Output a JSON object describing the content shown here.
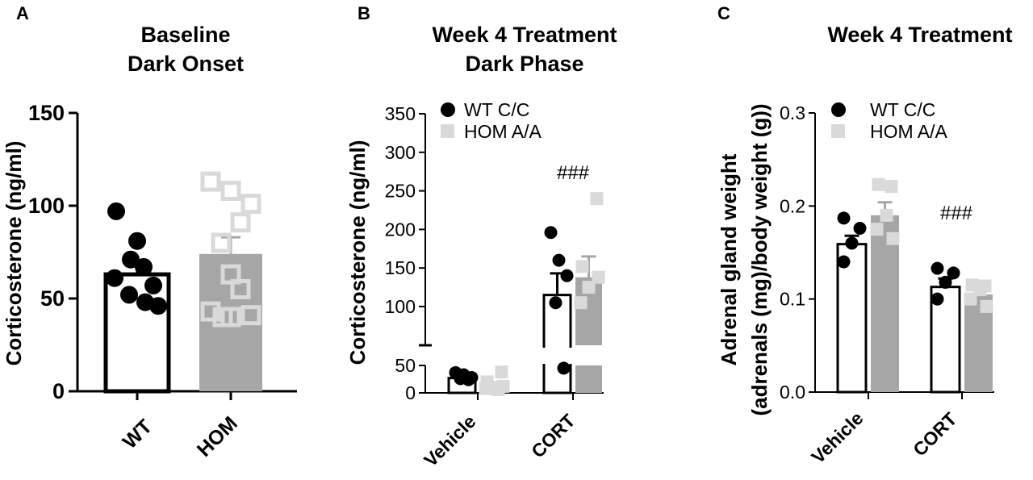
{
  "colors": {
    "wt": "#000000",
    "hom_bar": "#a6a6a6",
    "hom_point": "#d9d9d9"
  },
  "chart_data": [
    {
      "type": "bar",
      "panel": "A",
      "title": [
        "Baseline",
        "Dark Onset"
      ],
      "ylabel": "Corticosterone (ng/ml)",
      "categories": [
        "WT",
        "HOM"
      ],
      "ylim": [
        0,
        150
      ],
      "yticks": [
        0,
        50,
        100,
        150
      ],
      "series": [
        {
          "group": "WT",
          "mean": 63,
          "sem": 6,
          "points": [
            97,
            81,
            71,
            67,
            61,
            57,
            52,
            48,
            46
          ]
        },
        {
          "group": "HOM",
          "mean": 74,
          "sem": 9,
          "points": [
            113,
            108,
            101,
            91,
            80,
            63,
            55,
            43,
            41,
            40,
            40
          ]
        }
      ]
    },
    {
      "type": "bar",
      "panel": "B",
      "title": [
        "Week 4 Treatment",
        "Dark Phase"
      ],
      "ylabel": "Corticosterone (ng/ml)",
      "categories": [
        "Vehicle",
        "CORT"
      ],
      "ylim": [
        0,
        350
      ],
      "yticks": [
        0,
        50,
        100,
        150,
        200,
        250,
        300,
        350
      ],
      "axis_break": [
        50,
        80
      ],
      "legend": [
        "WT C/C",
        "HOM A/A"
      ],
      "annotation": "###",
      "series": [
        {
          "name": "WT C/C",
          "means": [
            27,
            115
          ],
          "sems": [
            3,
            28
          ],
          "points": [
            [
              37,
              33,
              28,
              26,
              24
            ],
            [
              196,
              160,
              140,
              105,
              45
            ]
          ]
        },
        {
          "name": "HOM A/A",
          "means": [
            13,
            138
          ],
          "sems": [
            5,
            27
          ],
          "points": [
            [
              38,
              20,
              12,
              10,
              8,
              6
            ],
            [
              240,
              152,
              138,
              125,
              105
            ]
          ]
        }
      ]
    },
    {
      "type": "bar",
      "panel": "C",
      "title": [
        "Week 4 Treatment"
      ],
      "ylabel": [
        "Adrenal gland weight",
        "(adrenals (mg)/body weight (g))"
      ],
      "categories": [
        "Vehicle",
        "CORT"
      ],
      "ylim": [
        0,
        0.3
      ],
      "yticks": [
        0.0,
        0.1,
        0.2,
        0.3
      ],
      "legend": [
        "WT C/C",
        "HOM A/A"
      ],
      "annotation": "###",
      "series": [
        {
          "name": "WT C/C",
          "means": [
            0.159,
            0.113
          ],
          "sems": [
            0.009,
            0.009
          ],
          "points": [
            [
              0.187,
              0.176,
              0.16,
              0.14
            ],
            [
              0.133,
              0.128,
              0.118,
              0.1
            ]
          ]
        },
        {
          "name": "HOM A/A",
          "means": [
            0.19,
            0.105
          ],
          "sems": [
            0.014,
            0.007
          ],
          "points": [
            [
              0.223,
              0.221,
              0.19,
              0.175,
              0.165
            ],
            [
              0.115,
              0.114,
              0.11,
              0.1,
              0.092
            ]
          ]
        }
      ]
    }
  ]
}
